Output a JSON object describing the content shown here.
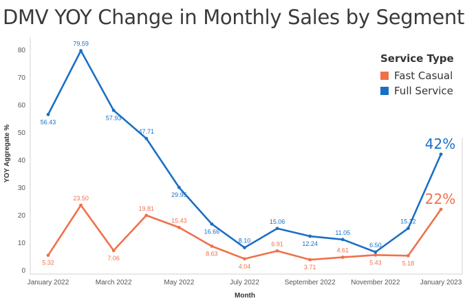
{
  "chart_data": {
    "type": "line",
    "title": "DMV YOY Change in Monthly Sales by Segment",
    "xlabel": "Month",
    "ylabel": "YOY Aggregate %",
    "ylim": [
      0,
      80
    ],
    "yticks": [
      0,
      10,
      20,
      30,
      40,
      50,
      60,
      70,
      80
    ],
    "x": [
      "Jan 2022",
      "Feb 2022",
      "Mar 2022",
      "Apr 2022",
      "May 2022",
      "Jun 2022",
      "Jul 2022",
      "Aug 2022",
      "Sep 2022",
      "Oct 2022",
      "Nov 2022",
      "Dec 2022",
      "Jan 2023"
    ],
    "xtick_labels": [
      {
        "index": 0,
        "label": "January 2022"
      },
      {
        "index": 2,
        "label": "March 2022"
      },
      {
        "index": 4,
        "label": "May 2022"
      },
      {
        "index": 6,
        "label": "July 2022"
      },
      {
        "index": 8,
        "label": "September 2022"
      },
      {
        "index": 10,
        "label": "November 2022"
      },
      {
        "index": 12,
        "label": "January 2023"
      }
    ],
    "legend": {
      "title": "Service Type",
      "position": "top-right"
    },
    "series": [
      {
        "name": "Fast Casual",
        "color": "#f0704a",
        "values": [
          5.32,
          23.5,
          7.06,
          19.81,
          15.43,
          8.63,
          4.04,
          6.91,
          3.71,
          4.61,
          5.43,
          5.18,
          22
        ],
        "labels": [
          "5.32",
          "23.50",
          "7.06",
          "19.81",
          "15.43",
          "8.63",
          "4.04",
          "6.91",
          "3.71",
          "4.61",
          "5.43",
          "5.18",
          "22%"
        ],
        "label_positions": [
          "below",
          "above",
          "below",
          "above",
          "above",
          "below",
          "below",
          "above",
          "below",
          "above",
          "below",
          "below",
          "above"
        ]
      },
      {
        "name": "Full Service",
        "color": "#1a6fc4",
        "values": [
          56.43,
          79.59,
          57.93,
          47.71,
          29.95,
          16.66,
          8.1,
          15.06,
          12.24,
          11.05,
          6.5,
          15.12,
          42
        ],
        "labels": [
          "56.43",
          "79.59",
          "57.93",
          "47.71",
          "29.95",
          "16.66",
          "8.10",
          "15.06",
          "12.24",
          "11.05",
          "6.50",
          "15.12",
          "42%"
        ],
        "label_positions": [
          "below",
          "above",
          "below",
          "above",
          "below",
          "below",
          "above",
          "above",
          "below",
          "above",
          "above",
          "above",
          "above"
        ]
      }
    ]
  }
}
